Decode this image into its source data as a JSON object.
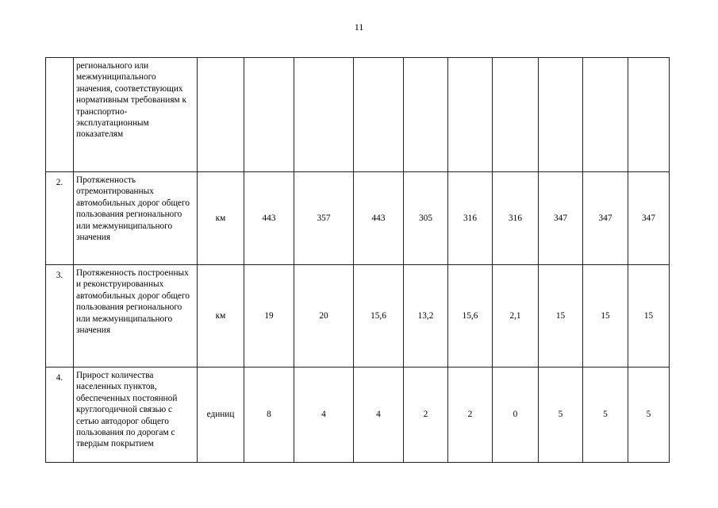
{
  "page_number": "11",
  "table": {
    "rows": [
      {
        "num": "",
        "indicator": "регионального или межмуниципального значения, соответствующих нормативным требованиям к транспортно-эксплуатационным показателям",
        "unit": "",
        "values": [
          "",
          "",
          "",
          "",
          "",
          "",
          "",
          "",
          ""
        ]
      },
      {
        "num": "2.",
        "indicator": "Протяженность отремонтированных автомобильных дорог общего пользования регионального или межмуниципального значения",
        "unit": "км",
        "values": [
          "443",
          "357",
          "443",
          "305",
          "316",
          "316",
          "347",
          "347",
          "347"
        ]
      },
      {
        "num": "3.",
        "indicator": "Протяженность построенных и реконструированных автомобильных дорог общего пользования регионального или межмуниципального значения",
        "unit": "км",
        "values": [
          "19",
          "20",
          "15,6",
          "13,2",
          "15,6",
          "2,1",
          "15",
          "15",
          "15"
        ]
      },
      {
        "num": "4.",
        "indicator": "Прирост количества населенных пунктов, обеспеченных постоянной круглогодичной связью с сетью автодорог общего пользования по дорогам с твердым покрытием",
        "unit": "единиц",
        "values": [
          "8",
          "4",
          "4",
          "2",
          "2",
          "0",
          "5",
          "5",
          "5"
        ]
      }
    ]
  }
}
